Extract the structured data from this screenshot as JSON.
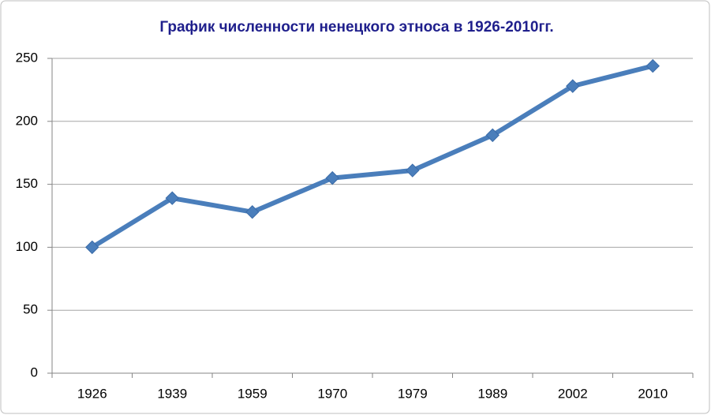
{
  "chart_data": {
    "type": "line",
    "title": "График численности ненецкого этноса в 1926-2010гг.",
    "categories": [
      "1926",
      "1939",
      "1959",
      "1970",
      "1979",
      "1989",
      "2002",
      "2010"
    ],
    "values": [
      100,
      139,
      128,
      155,
      161,
      189,
      228,
      244
    ],
    "color": "#4a7ebb",
    "ylim": [
      0,
      250
    ],
    "yticks": [
      0,
      50,
      100,
      150,
      200,
      250
    ],
    "grid": true
  }
}
